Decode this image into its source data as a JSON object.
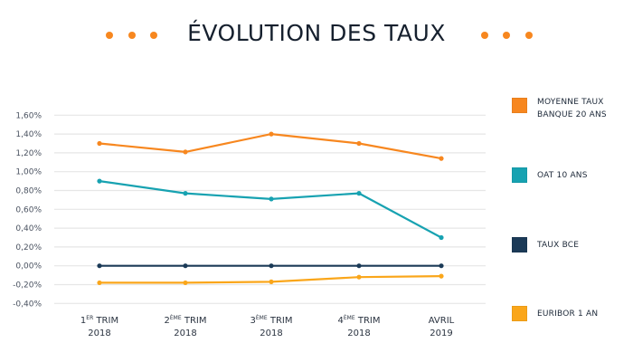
{
  "header": {
    "title": "ÉVOLUTION DES TAUX",
    "decoration_color": "#f7871f"
  },
  "chart_data": {
    "type": "line",
    "title": "ÉVOLUTION DES TAUX",
    "xlabel": "",
    "ylabel": "",
    "ylim": [
      -0.4,
      1.6
    ],
    "y_ticks": [
      1.6,
      1.4,
      1.2,
      1.0,
      0.8,
      0.6,
      0.4,
      0.2,
      0.0,
      -0.2,
      -0.4
    ],
    "y_tick_labels": [
      "1,60%",
      "1,40%",
      "1,20%",
      "1,00%",
      "0,80%",
      "0,60%",
      "0,40%",
      "0,20%",
      "0,00%",
      "-0,20%",
      "-0,40%"
    ],
    "grid": true,
    "legend_position": "right",
    "categories": [
      {
        "line1_main": "1",
        "line1_sup": "ER",
        "line1_rest": " TRIM",
        "line2": "2018"
      },
      {
        "line1_main": "2",
        "line1_sup": "ÈME",
        "line1_rest": " TRIM",
        "line2": "2018"
      },
      {
        "line1_main": "3",
        "line1_sup": "ÈME",
        "line1_rest": " TRIM",
        "line2": "2018"
      },
      {
        "line1_main": "4",
        "line1_sup": "ÈME",
        "line1_rest": " TRIM",
        "line2": "2018"
      },
      {
        "line1_main": "AVRIL",
        "line1_sup": "",
        "line1_rest": "",
        "line2": "2019"
      }
    ],
    "series": [
      {
        "name": "MOYENNE TAUX BANQUE 20 ANS",
        "color": "#f7871f",
        "values": [
          1.3,
          1.21,
          1.4,
          1.3,
          1.14
        ]
      },
      {
        "name": "OAT 10 ANS",
        "color": "#17a2b1",
        "values": [
          0.9,
          0.77,
          0.71,
          0.77,
          0.3
        ]
      },
      {
        "name": "TAUX BCE",
        "color": "#1b3a57",
        "values": [
          0.0,
          0.0,
          0.0,
          0.0,
          0.0
        ]
      },
      {
        "name": "EURIBOR 1 AN",
        "color": "#faa61a",
        "values": [
          -0.18,
          -0.18,
          -0.17,
          -0.12,
          -0.11
        ]
      }
    ]
  }
}
